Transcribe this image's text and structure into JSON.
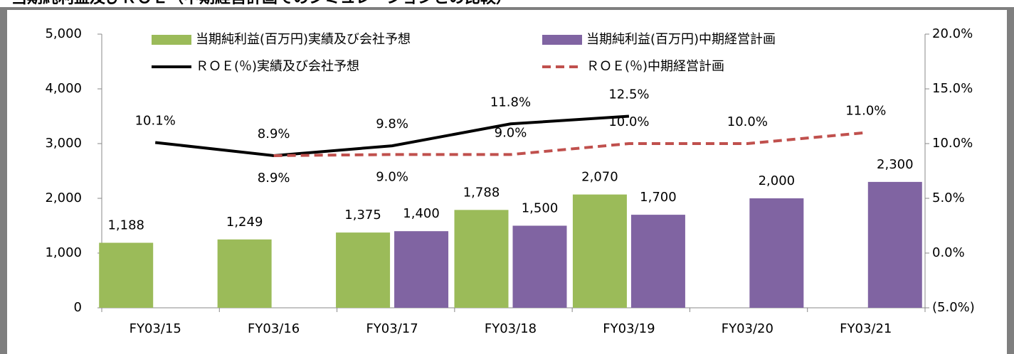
{
  "chart_data": {
    "type": "bar-line",
    "title": "当期純利益及びＲＯＥ（中期経営計画でのシミュレーションとの比較）",
    "categories": [
      "FY03/15",
      "FY03/16",
      "FY03/17",
      "FY03/18",
      "FY03/19",
      "FY03/20",
      "FY03/21"
    ],
    "series": [
      {
        "name": "当期純利益(百万円)実績及び会社予想",
        "kind": "bar",
        "color": "#9bbb59",
        "values": [
          1188,
          1249,
          1375,
          1788,
          2070,
          null,
          null
        ],
        "value_labels": [
          "1,188",
          "1,249",
          "1,375",
          "1,788",
          "2,070",
          null,
          null
        ]
      },
      {
        "name": "当期純利益(百万円)中期経営計画",
        "kind": "bar",
        "color": "#8064a2",
        "values": [
          null,
          null,
          1400,
          1500,
          1700,
          2000,
          2300
        ],
        "value_labels": [
          null,
          null,
          "1,400",
          "1,500",
          "1,700",
          "2,000",
          "2,300"
        ]
      },
      {
        "name": "ＲＯＥ(％)実績及び会社予想",
        "kind": "line",
        "axis": "y2",
        "color": "#000000",
        "values": [
          10.1,
          8.9,
          9.8,
          11.8,
          12.5,
          null,
          null
        ],
        "value_labels": [
          "10.1%",
          "8.9%",
          "9.8%",
          "11.8%",
          "12.5%",
          null,
          null
        ]
      },
      {
        "name": "ＲＯＥ(％)中期経営計画",
        "kind": "line",
        "dashed": true,
        "axis": "y2",
        "color": "#c0504d",
        "values": [
          null,
          8.9,
          9.0,
          9.0,
          10.0,
          10.0,
          11.0
        ],
        "value_labels": [
          null,
          "8.9%",
          "9.0%",
          "9.0%",
          "10.0%",
          "10.0%",
          "11.0%"
        ]
      }
    ],
    "ylim": [
      0,
      5000
    ],
    "yticks": [
      0,
      {
        "value": 1000,
        "label": "1,000"
      },
      {
        "value": 2000,
        "label": "2,000"
      },
      {
        "value": 3000,
        "label": "3,000"
      },
      {
        "value": 4000,
        "label": "4,000"
      },
      {
        "value": 5000,
        "label": "5,000"
      }
    ],
    "y2lim": [
      -5,
      20
    ],
    "y2ticks": [
      {
        "value": -5,
        "label": "(5.0%)"
      },
      {
        "value": 0,
        "label": "0.0%"
      },
      {
        "value": 5,
        "label": "5.0%"
      },
      {
        "value": 10,
        "label": "10.0%"
      },
      {
        "value": 15,
        "label": "15.0%"
      },
      {
        "value": 20,
        "label": "20.0%"
      }
    ]
  }
}
